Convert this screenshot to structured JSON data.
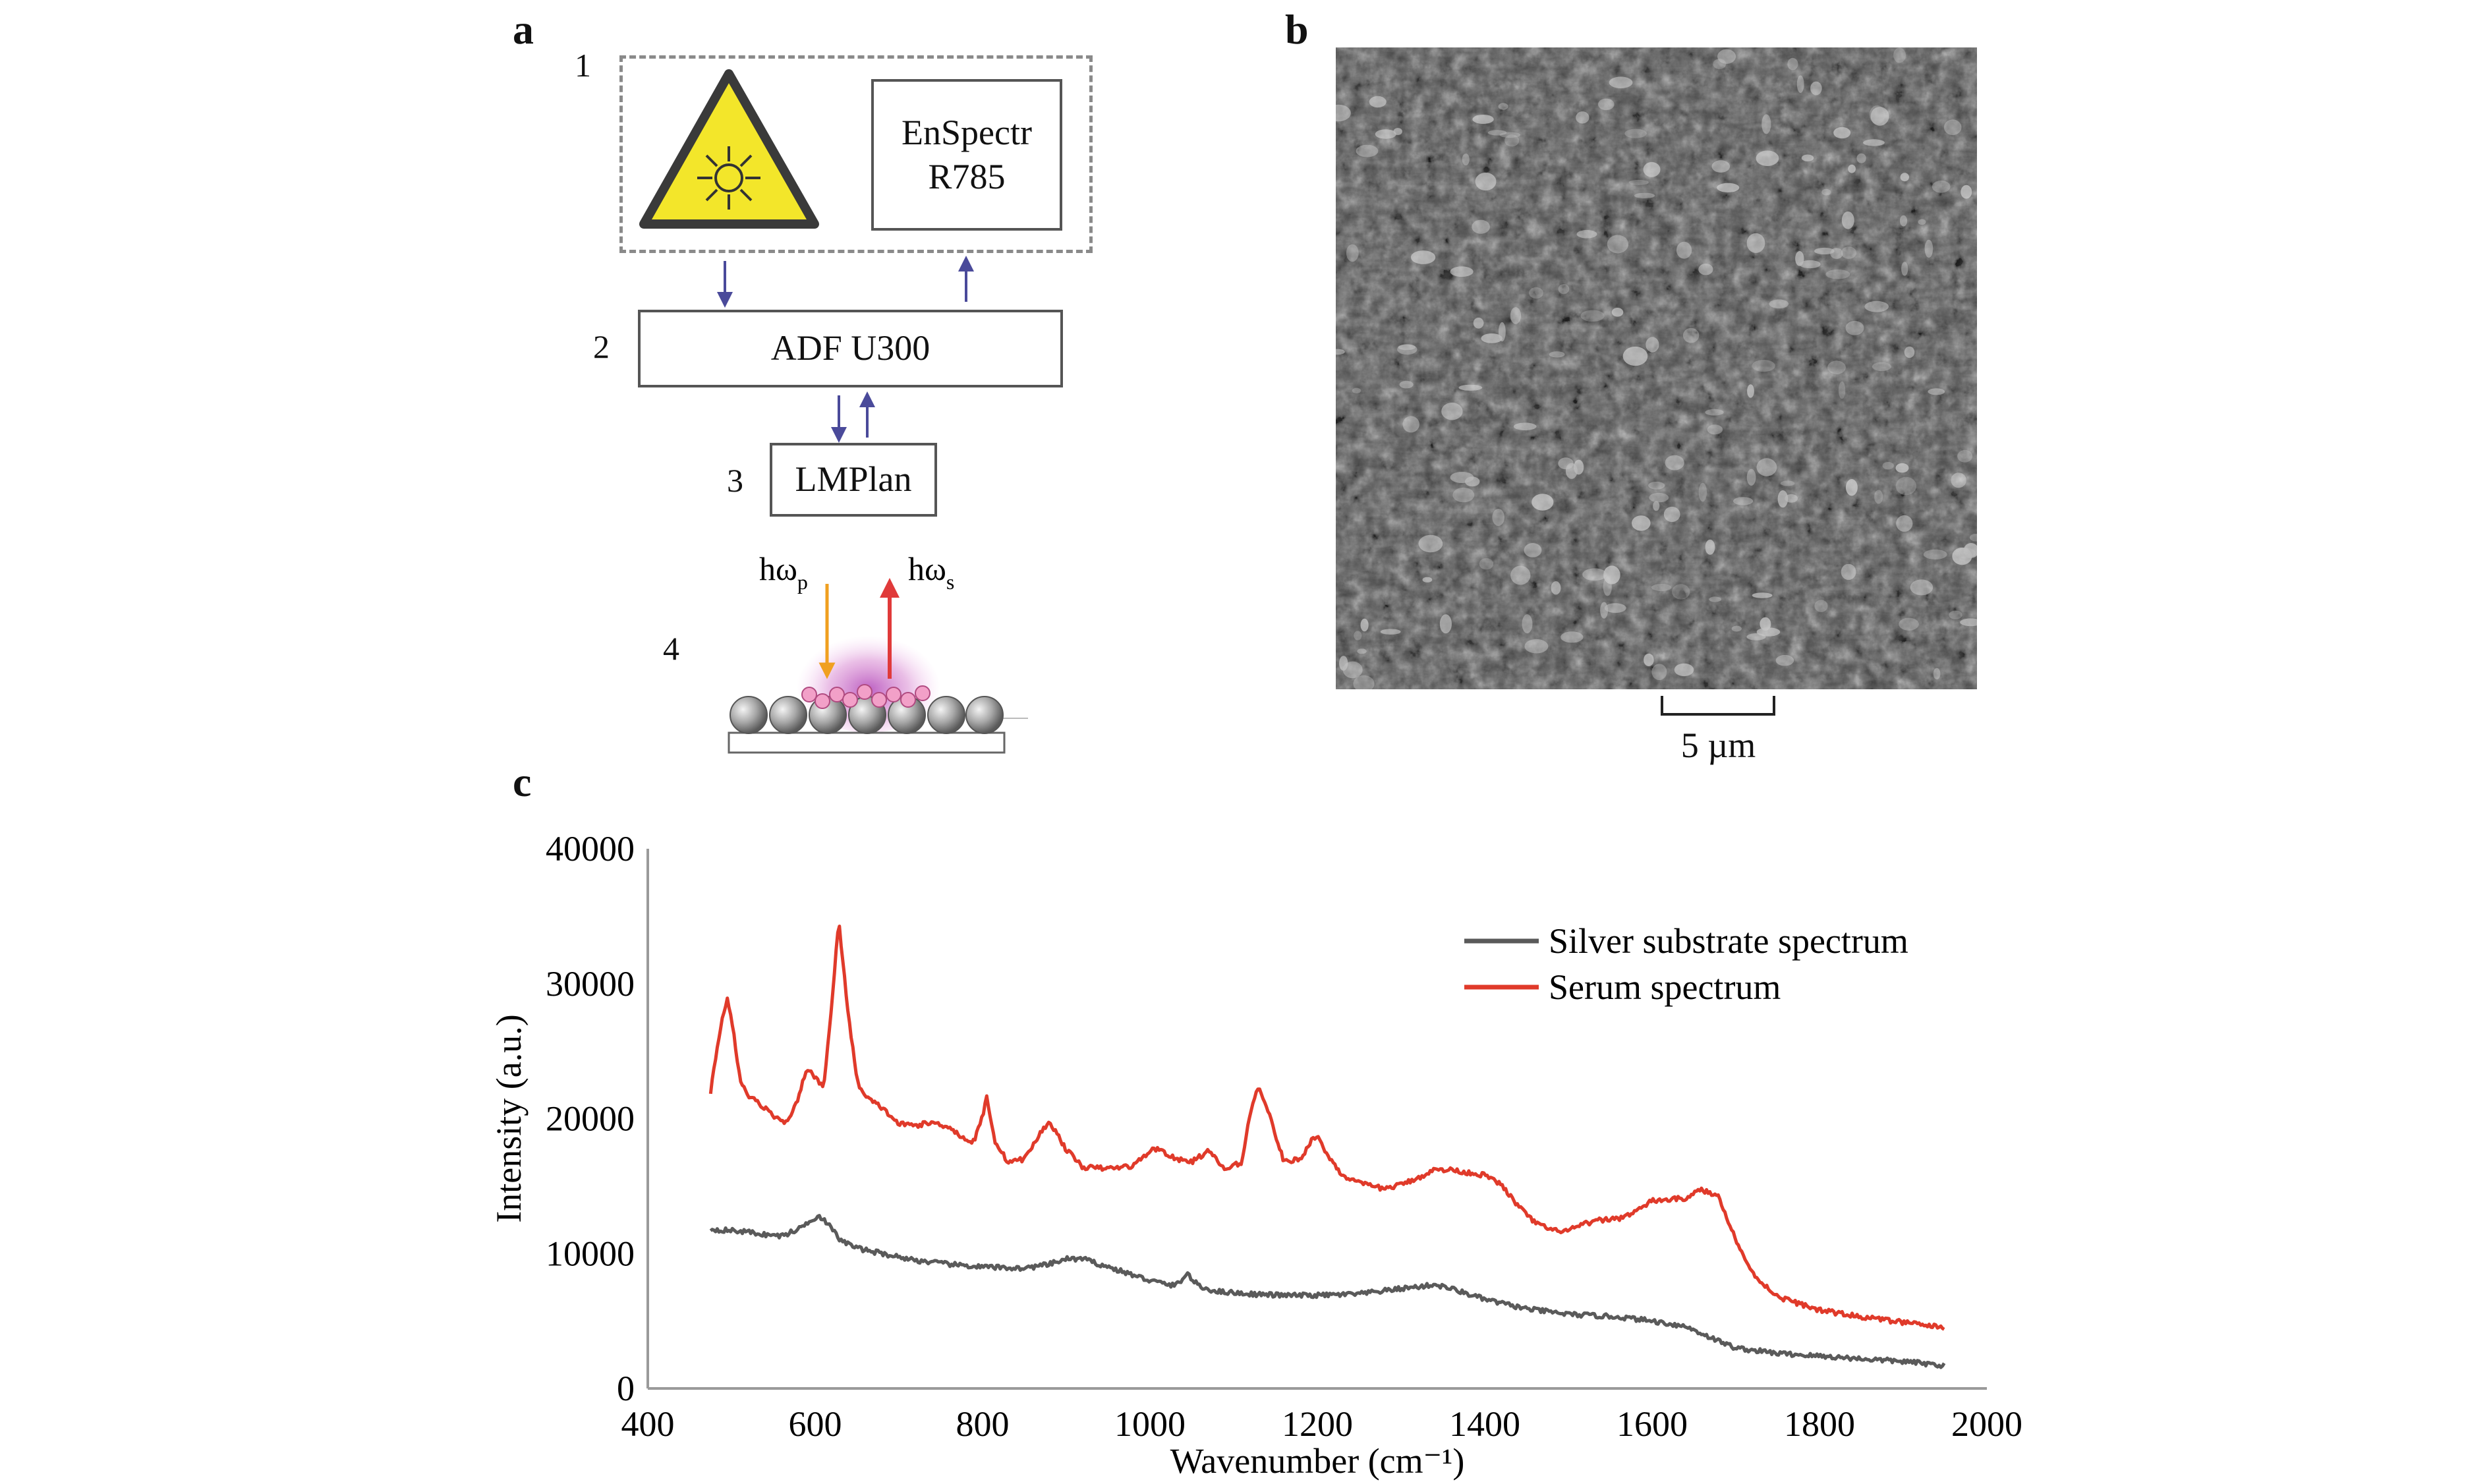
{
  "panels": {
    "a": "a",
    "b": "b",
    "c": "c"
  },
  "diagram": {
    "components": [
      {
        "num": "1",
        "label": "EnSpectr R785",
        "icon": "laser-warning-icon"
      },
      {
        "num": "2",
        "label": "ADF U300"
      },
      {
        "num": "3",
        "label": "LMPlan"
      },
      {
        "num": "4",
        "label": "",
        "icon": "nanoparticle-substrate-icon"
      }
    ],
    "spectrometer_line1": "EnSpectr",
    "spectrometer_line2": "R785",
    "pump_label": "hω",
    "pump_sub": "p",
    "stokes_label": "hω",
    "stokes_sub": "s",
    "colors": {
      "laser_yellow": "#f3e62a",
      "pump_arrow": "#f0a020",
      "stokes_arrow": "#e03a3a",
      "flow_arrow": "#4a4a9a",
      "particle": "#f2a0c8"
    }
  },
  "micrograph": {
    "scale_bar": "5 µm"
  },
  "chart_data": {
    "type": "line",
    "xlabel": "Wavenumber (cm⁻¹)",
    "ylabel": "Intensity (a.u.)",
    "xlim": [
      400,
      2000
    ],
    "ylim": [
      0,
      40000
    ],
    "xticks": [
      400,
      600,
      800,
      1000,
      1200,
      1400,
      1600,
      1800,
      2000
    ],
    "yticks": [
      0,
      10000,
      20000,
      30000,
      40000
    ],
    "legend_position": "top-right",
    "grid": false,
    "series": [
      {
        "name": "Silver substrate spectrum",
        "color": "#5a5a5a",
        "x": [
          475,
          500,
          520,
          540,
          560,
          580,
          595,
          605,
          615,
          630,
          650,
          680,
          720,
          760,
          800,
          850,
          880,
          900,
          920,
          950,
          980,
          1000,
          1030,
          1045,
          1050,
          1060,
          1080,
          1120,
          1160,
          1200,
          1250,
          1300,
          1330,
          1340,
          1360,
          1400,
          1450,
          1500,
          1560,
          1600,
          1640,
          1680,
          1700,
          1750,
          1800,
          1850,
          1900,
          1950
        ],
        "y": [
          11800,
          11700,
          11600,
          11400,
          11300,
          11800,
          12500,
          12800,
          12200,
          11000,
          10400,
          10000,
          9500,
          9200,
          9000,
          8900,
          9200,
          9600,
          9600,
          9000,
          8400,
          8000,
          7600,
          8500,
          8100,
          7500,
          7200,
          7000,
          6900,
          6900,
          7000,
          7400,
          7600,
          7700,
          7400,
          6600,
          5900,
          5500,
          5300,
          5000,
          4600,
          3500,
          3000,
          2600,
          2400,
          2200,
          2000,
          1700
        ]
      },
      {
        "name": "Serum spectrum",
        "color": "#e03a2a",
        "x": [
          475,
          480,
          490,
          495,
          500,
          510,
          520,
          540,
          560,
          570,
          580,
          590,
          600,
          610,
          620,
          628,
          640,
          650,
          660,
          680,
          700,
          720,
          740,
          760,
          780,
          790,
          800,
          805,
          815,
          830,
          850,
          870,
          880,
          900,
          920,
          950,
          980,
          1000,
          1010,
          1030,
          1050,
          1060,
          1070,
          1090,
          1110,
          1120,
          1130,
          1140,
          1160,
          1180,
          1195,
          1200,
          1210,
          1230,
          1250,
          1280,
          1300,
          1320,
          1340,
          1360,
          1380,
          1400,
          1420,
          1440,
          1460,
          1480,
          1500,
          1520,
          1540,
          1560,
          1580,
          1600,
          1620,
          1640,
          1650,
          1660,
          1680,
          1700,
          1720,
          1750,
          1800,
          1850,
          1900,
          1950
        ],
        "y": [
          22000,
          24000,
          27800,
          28800,
          27500,
          23000,
          21700,
          20800,
          19700,
          20000,
          21500,
          23800,
          23000,
          22300,
          28500,
          34700,
          27500,
          22800,
          21600,
          20800,
          19600,
          19500,
          19700,
          19400,
          18400,
          18300,
          20200,
          21600,
          18300,
          16800,
          17000,
          19000,
          19800,
          17700,
          16400,
          16300,
          16500,
          17600,
          17800,
          17000,
          16800,
          17200,
          17600,
          16200,
          16800,
          20500,
          22500,
          20800,
          16800,
          17000,
          18600,
          18700,
          17500,
          15800,
          15200,
          14800,
          15100,
          15600,
          16200,
          16200,
          16000,
          15800,
          15100,
          13500,
          12300,
          11700,
          11700,
          12200,
          12500,
          12600,
          13100,
          13900,
          14000,
          14100,
          14500,
          14700,
          14200,
          11000,
          8500,
          6800,
          5800,
          5300,
          4900,
          4500
        ]
      }
    ]
  }
}
